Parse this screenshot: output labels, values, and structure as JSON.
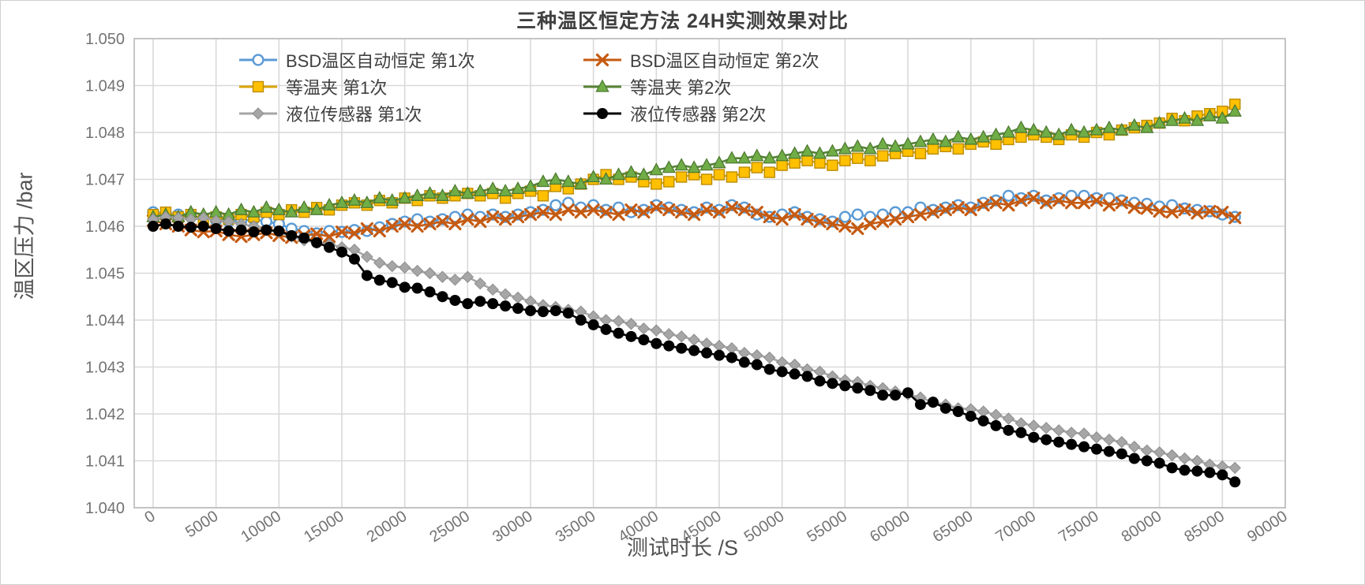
{
  "chart_data": {
    "type": "line",
    "title": "三种温区恒定方法 24H实测效果对比",
    "xlabel": "测试时长 /S",
    "ylabel": "温区压力 /bar",
    "xlim": [
      0,
      90000
    ],
    "ylim": [
      1.04,
      1.05
    ],
    "x_ticks": [
      0,
      5000,
      10000,
      15000,
      20000,
      25000,
      30000,
      35000,
      40000,
      45000,
      50000,
      55000,
      60000,
      65000,
      70000,
      75000,
      80000,
      85000,
      90000
    ],
    "y_ticks": [
      1.04,
      1.041,
      1.042,
      1.043,
      1.044,
      1.045,
      1.046,
      1.047,
      1.048,
      1.049,
      1.05
    ],
    "grid": true,
    "legend_position": "top-inside",
    "x_start": 0,
    "x_step": 1000,
    "series": [
      {
        "name": "BSD温区自动恒定 第1次",
        "marker": "open-circle",
        "color": "#5B9BD5",
        "marker_fill": "#FFFFFF",
        "marker_stroke": "#5B9BD5",
        "values": [
          1.0463,
          1.04628,
          1.04625,
          1.0462,
          1.04618,
          1.04612,
          1.0461,
          1.04612,
          1.04615,
          1.0461,
          1.04605,
          1.04595,
          1.0459,
          1.04585,
          1.0459,
          1.04588,
          1.04592,
          1.0459,
          1.04598,
          1.04605,
          1.0461,
          1.04615,
          1.0461,
          1.04615,
          1.0462,
          1.04625,
          1.0462,
          1.04625,
          1.0462,
          1.04625,
          1.0463,
          1.04635,
          1.04645,
          1.0465,
          1.0464,
          1.04645,
          1.04635,
          1.0464,
          1.0463,
          1.04635,
          1.04645,
          1.0464,
          1.04635,
          1.0463,
          1.0464,
          1.04635,
          1.04645,
          1.0464,
          1.04625,
          1.0462,
          1.04625,
          1.0463,
          1.0462,
          1.04615,
          1.0461,
          1.0462,
          1.04625,
          1.0462,
          1.04625,
          1.0463,
          1.0463,
          1.0464,
          1.04635,
          1.0464,
          1.04645,
          1.0464,
          1.0465,
          1.04655,
          1.04665,
          1.0466,
          1.04665,
          1.04655,
          1.0466,
          1.04665,
          1.04665,
          1.0466,
          1.0466,
          1.04655,
          1.0465,
          1.04648,
          1.04642,
          1.04645,
          1.04638,
          1.04635,
          1.04632,
          1.04625,
          1.0462
        ]
      },
      {
        "name": "BSD温区自动恒定 第2次",
        "marker": "x",
        "color": "#C55A11",
        "marker_fill": "none",
        "marker_stroke": "#C55A11",
        "values": [
          1.04612,
          1.04605,
          1.046,
          1.04592,
          1.04588,
          1.0459,
          1.04582,
          1.04578,
          1.04582,
          1.04586,
          1.0458,
          1.04576,
          1.0458,
          1.04584,
          1.04578,
          1.04588,
          1.04585,
          1.04595,
          1.0459,
          1.046,
          1.04605,
          1.046,
          1.04605,
          1.0461,
          1.04605,
          1.04615,
          1.0461,
          1.0462,
          1.04615,
          1.0462,
          1.04625,
          1.0463,
          1.04625,
          1.04635,
          1.0463,
          1.04635,
          1.0463,
          1.04625,
          1.04635,
          1.0463,
          1.0464,
          1.04635,
          1.0463,
          1.04625,
          1.04635,
          1.0463,
          1.0464,
          1.04635,
          1.0463,
          1.0462,
          1.04615,
          1.04625,
          1.04615,
          1.0461,
          1.04605,
          1.046,
          1.04595,
          1.04605,
          1.0461,
          1.04615,
          1.0462,
          1.04625,
          1.0463,
          1.04635,
          1.0464,
          1.04635,
          1.04645,
          1.0465,
          1.04645,
          1.04655,
          1.0466,
          1.0465,
          1.04655,
          1.0465,
          1.0465,
          1.04655,
          1.04645,
          1.0465,
          1.0464,
          1.04638,
          1.04632,
          1.0463,
          1.04635,
          1.04628,
          1.04632,
          1.0463,
          1.04618
        ]
      },
      {
        "name": "等温夹 第1次",
        "marker": "square",
        "color": "#D9A300",
        "marker_fill": "#FFC000",
        "marker_stroke": "#BC8C00",
        "values": [
          1.04625,
          1.0463,
          1.0462,
          1.04625,
          1.04615,
          1.0462,
          1.04615,
          1.04625,
          1.0462,
          1.0463,
          1.04625,
          1.04635,
          1.0463,
          1.0464,
          1.04635,
          1.04645,
          1.0465,
          1.04645,
          1.04655,
          1.0465,
          1.0466,
          1.04655,
          1.04665,
          1.0466,
          1.04665,
          1.0467,
          1.04665,
          1.0467,
          1.0466,
          1.0467,
          1.04675,
          1.04665,
          1.04685,
          1.0468,
          1.0469,
          1.047,
          1.0471,
          1.047,
          1.04705,
          1.04695,
          1.0469,
          1.04695,
          1.04705,
          1.0471,
          1.047,
          1.0471,
          1.04705,
          1.04715,
          1.04725,
          1.04715,
          1.0473,
          1.04735,
          1.0474,
          1.04735,
          1.0473,
          1.0474,
          1.04745,
          1.0474,
          1.0475,
          1.04755,
          1.0476,
          1.04755,
          1.04765,
          1.0477,
          1.04765,
          1.04775,
          1.0478,
          1.04775,
          1.04785,
          1.0479,
          1.04795,
          1.0479,
          1.04785,
          1.04795,
          1.0479,
          1.048,
          1.04795,
          1.04805,
          1.0481,
          1.04815,
          1.0482,
          1.0483,
          1.04825,
          1.04835,
          1.0484,
          1.04845,
          1.0486
        ]
      },
      {
        "name": "等温夹 第2次",
        "marker": "triangle",
        "color": "#548235",
        "marker_fill": "#70AD47",
        "marker_stroke": "#4E7A31",
        "values": [
          1.0462,
          1.04625,
          1.0462,
          1.0463,
          1.04625,
          1.0463,
          1.04625,
          1.04635,
          1.0463,
          1.0464,
          1.04635,
          1.0463,
          1.0464,
          1.04635,
          1.04645,
          1.0465,
          1.04655,
          1.0465,
          1.0466,
          1.04655,
          1.0466,
          1.04665,
          1.0467,
          1.04665,
          1.04675,
          1.0467,
          1.04675,
          1.0468,
          1.04675,
          1.0468,
          1.04685,
          1.04695,
          1.047,
          1.04695,
          1.0469,
          1.04705,
          1.047,
          1.0471,
          1.04715,
          1.0471,
          1.0472,
          1.04725,
          1.0473,
          1.04725,
          1.0473,
          1.04735,
          1.04745,
          1.04745,
          1.0475,
          1.04745,
          1.0475,
          1.04755,
          1.0476,
          1.04755,
          1.0476,
          1.04765,
          1.0477,
          1.04765,
          1.04775,
          1.0477,
          1.04775,
          1.0478,
          1.04785,
          1.0478,
          1.0479,
          1.04785,
          1.0479,
          1.04795,
          1.048,
          1.0481,
          1.04805,
          1.048,
          1.04795,
          1.04805,
          1.048,
          1.04805,
          1.0481,
          1.04805,
          1.04815,
          1.0481,
          1.0482,
          1.04825,
          1.0483,
          1.04825,
          1.04835,
          1.0483,
          1.04845
        ]
      },
      {
        "name": "液位传感器 第1次",
        "marker": "diamond",
        "color": "#A6A6A6",
        "marker_fill": "#A6A6A6",
        "marker_stroke": "#8C8C8C",
        "values": [
          1.04615,
          1.0462,
          1.04618,
          1.04615,
          1.04618,
          1.04612,
          1.0461,
          1.04605,
          1.046,
          1.04592,
          1.04588,
          1.04578,
          1.0457,
          1.04565,
          1.04562,
          1.04555,
          1.0455,
          1.04535,
          1.04522,
          1.04515,
          1.04512,
          1.04505,
          1.045,
          1.04492,
          1.04486,
          1.04492,
          1.04478,
          1.04465,
          1.04455,
          1.04448,
          1.0444,
          1.04432,
          1.04428,
          1.04422,
          1.04418,
          1.04408,
          1.044,
          1.04398,
          1.04392,
          1.04382,
          1.04378,
          1.0437,
          1.04365,
          1.04358,
          1.0435,
          1.04345,
          1.0434,
          1.0433,
          1.04325,
          1.0432,
          1.0431,
          1.04305,
          1.04295,
          1.0429,
          1.0428,
          1.04272,
          1.04268,
          1.0426,
          1.04255,
          1.04248,
          1.04242,
          1.04235,
          1.04225,
          1.0422,
          1.04212,
          1.0421,
          1.04205,
          1.04198,
          1.0419,
          1.0418,
          1.04175,
          1.0417,
          1.04165,
          1.0416,
          1.04158,
          1.0415,
          1.04145,
          1.0414,
          1.0413,
          1.04122,
          1.04118,
          1.04112,
          1.04105,
          1.041,
          1.04092,
          1.04088,
          1.04085
        ]
      },
      {
        "name": "液位传感器 第2次",
        "marker": "circle",
        "color": "#000000",
        "marker_fill": "#000000",
        "marker_stroke": "#000000",
        "values": [
          1.046,
          1.04605,
          1.046,
          1.04598,
          1.046,
          1.04595,
          1.0459,
          1.04592,
          1.04588,
          1.04592,
          1.0459,
          1.0458,
          1.04575,
          1.04565,
          1.04555,
          1.04545,
          1.0453,
          1.04495,
          1.04485,
          1.0448,
          1.0447,
          1.04468,
          1.0446,
          1.0445,
          1.04442,
          1.04435,
          1.0444,
          1.04435,
          1.0443,
          1.04425,
          1.0442,
          1.04418,
          1.0442,
          1.04415,
          1.044,
          1.0439,
          1.0438,
          1.04372,
          1.04365,
          1.04358,
          1.0435,
          1.04345,
          1.0434,
          1.04335,
          1.0433,
          1.04325,
          1.0432,
          1.0431,
          1.04305,
          1.04295,
          1.0429,
          1.04285,
          1.0428,
          1.0427,
          1.04265,
          1.0426,
          1.04255,
          1.0425,
          1.0424,
          1.0424,
          1.04245,
          1.0422,
          1.04225,
          1.04212,
          1.04205,
          1.04195,
          1.04185,
          1.04175,
          1.04165,
          1.0416,
          1.0415,
          1.04145,
          1.0414,
          1.04135,
          1.0413,
          1.04125,
          1.0412,
          1.04115,
          1.04105,
          1.041,
          1.04095,
          1.04085,
          1.0408,
          1.04078,
          1.04075,
          1.0407,
          1.04055
        ]
      }
    ],
    "colors": {
      "grid": "#D9D9D9",
      "plot_border": "#BFBFBF",
      "tick_label": "#737373",
      "title": "#3F3F3F",
      "axis_title": "#525252",
      "legend_text": "#404040",
      "background": "#FFFFFF"
    }
  }
}
